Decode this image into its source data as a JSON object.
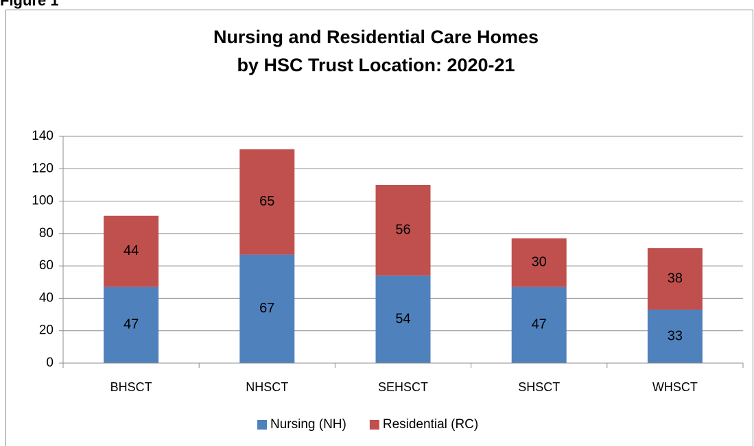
{
  "figure_label": "Figure 1",
  "chart_data": {
    "type": "stacked_bar",
    "title": [
      "Nursing and Residential Care Homes",
      "by HSC Trust Location: 2020-21"
    ],
    "categories": [
      "BHSCT",
      "NHSCT",
      "SEHSCT",
      "SHSCT",
      "WHSCT"
    ],
    "series": [
      {
        "name": "Nursing (NH)",
        "color": "#4f81bd",
        "values": [
          47,
          67,
          54,
          47,
          33
        ]
      },
      {
        "name": "Residential (RC)",
        "color": "#c0504d",
        "values": [
          44,
          65,
          56,
          30,
          38
        ]
      }
    ],
    "ylim": [
      0,
      140
    ],
    "yticks": [
      0,
      20,
      40,
      60,
      80,
      100,
      120,
      140
    ],
    "grid": true,
    "legend": "bottom"
  }
}
